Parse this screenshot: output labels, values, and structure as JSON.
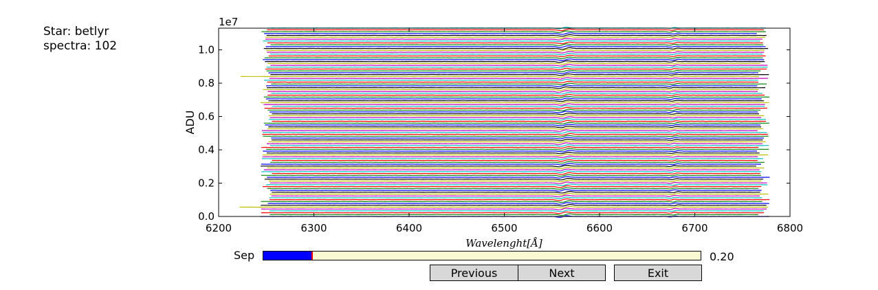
{
  "info": {
    "star_line": "Star: betlyr",
    "spectra_line": "spectra: 102"
  },
  "controls": {
    "slider_label": "Sep",
    "slider_value_text": "0.20",
    "slider_fraction": 0.11,
    "slider_marker_fraction": 0.11,
    "fill_color": "#0000ff",
    "marker_color": "#ff0000",
    "track_color": "#fafad2",
    "previous_label": "Previous",
    "next_label": "Next",
    "exit_label": "Exit"
  },
  "chart_data": {
    "type": "line",
    "title": "",
    "xlabel": "Wavelenght[Å]",
    "ylabel": "ADU",
    "y_offset_label": "1e7",
    "xlim": [
      6200,
      6800
    ],
    "ylim": [
      0,
      1.13
    ],
    "xticks": [
      6200,
      6300,
      6400,
      6500,
      6600,
      6700,
      6800
    ],
    "xtick_labels": [
      "6200",
      "6300",
      "6400",
      "6500",
      "6600",
      "6700",
      "6800"
    ],
    "yticks": [
      0.0,
      0.2,
      0.4,
      0.6,
      0.8,
      1.0
    ],
    "ytick_labels": [
      "0.0",
      "0.2",
      "0.4",
      "0.6",
      "0.8",
      "1.0"
    ],
    "grid": false,
    "series_count": 102,
    "offset_step": 0.0112,
    "x_range": [
      6250,
      6770
    ],
    "absorption_lines": [
      6563,
      6678
    ],
    "colors": [
      "#0000ff",
      "#008000",
      "#ff0000",
      "#00bfbf",
      "#bf00bf",
      "#bfbf00",
      "#000000"
    ]
  }
}
